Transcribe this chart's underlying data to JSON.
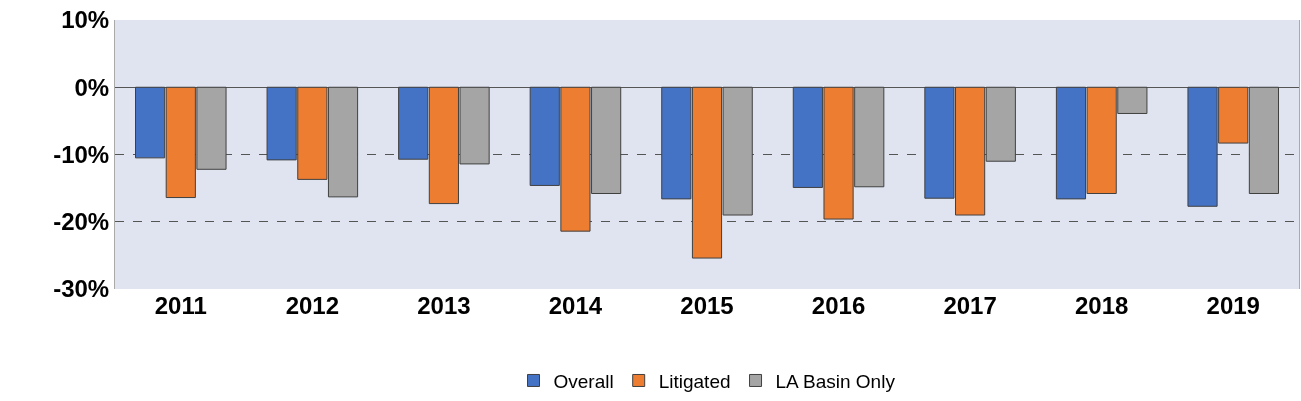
{
  "chart_data": {
    "type": "bar",
    "categories": [
      "2011",
      "2012",
      "2013",
      "2014",
      "2015",
      "2016",
      "2017",
      "2018",
      "2019"
    ],
    "series": [
      {
        "name": "Overall",
        "color": "#4472c4",
        "values": [
          -10.5,
          -10.8,
          -10.7,
          -14.6,
          -16.6,
          -14.9,
          -16.5,
          -16.6,
          -17.7
        ]
      },
      {
        "name": "Litigated",
        "color": "#ed7d31",
        "values": [
          -16.4,
          -13.7,
          -17.3,
          -21.4,
          -25.4,
          -19.6,
          -19.0,
          -15.8,
          -8.3
        ]
      },
      {
        "name": "LA Basin Only",
        "color": "#a5a5a5",
        "values": [
          -12.2,
          -16.3,
          -11.4,
          -15.8,
          -19.0,
          -14.8,
          -11.0,
          -3.9,
          -15.8
        ]
      }
    ],
    "ylim": [
      -30,
      10
    ],
    "yticks": [
      {
        "value": -30,
        "label": "-30%"
      },
      {
        "value": -20,
        "label": "-20%"
      },
      {
        "value": -10,
        "label": "-10%"
      },
      {
        "value": 0,
        "label": "0%"
      },
      {
        "value": 10,
        "label": "10%"
      }
    ],
    "grid": "y",
    "legend": "bottom"
  }
}
